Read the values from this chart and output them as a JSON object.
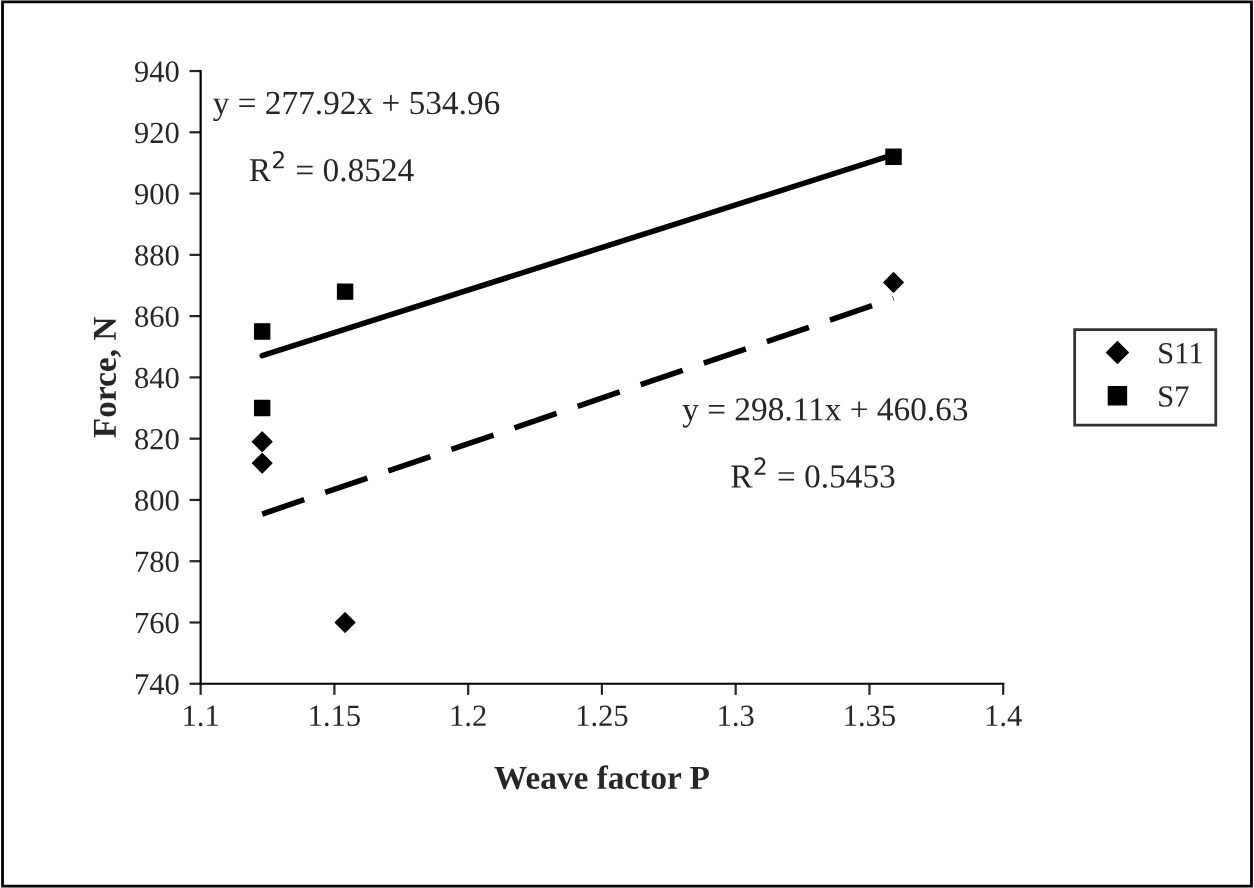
{
  "chart_data": {
    "type": "scatter",
    "xlabel": "Weave factor P",
    "ylabel": "Force, N",
    "xlim": [
      1.1,
      1.4
    ],
    "xticks": [
      1.1,
      1.15,
      1.2,
      1.25,
      1.3,
      1.35,
      1.4
    ],
    "ylim": [
      740,
      940
    ],
    "yticks": [
      740,
      760,
      780,
      800,
      820,
      840,
      860,
      880,
      900,
      920,
      940
    ],
    "grid": false,
    "legend": "right",
    "series": [
      {
        "name": "S11",
        "color": "#000000",
        "marker": "diamond",
        "x": [
          1.123,
          1.123,
          1.154,
          1.359
        ],
        "values": [
          819,
          812,
          760,
          871
        ]
      },
      {
        "name": "S7",
        "color": "#000000",
        "marker": "square",
        "x": [
          1.123,
          1.123,
          1.154,
          1.359
        ],
        "values": [
          855,
          830,
          868,
          912
        ]
      },
      {
        "type": "line",
        "color": "#000000",
        "marker": "none",
        "line_style": "solid",
        "x": [
          1.123,
          1.359
        ],
        "values": [
          847.1,
          912.7
        ]
      },
      {
        "type": "line",
        "color": "#000000",
        "marker": "none",
        "line_style": "dashed",
        "x": [
          1.123,
          1.359
        ],
        "values": [
          795.4,
          865.8
        ]
      }
    ],
    "annotations": [
      "y = 277.92x + 534.96",
      "R$^{2}$ = 0.8524",
      "y = 298.11x + 460.63",
      "R$^{2}$ = 0.5453"
    ]
  }
}
